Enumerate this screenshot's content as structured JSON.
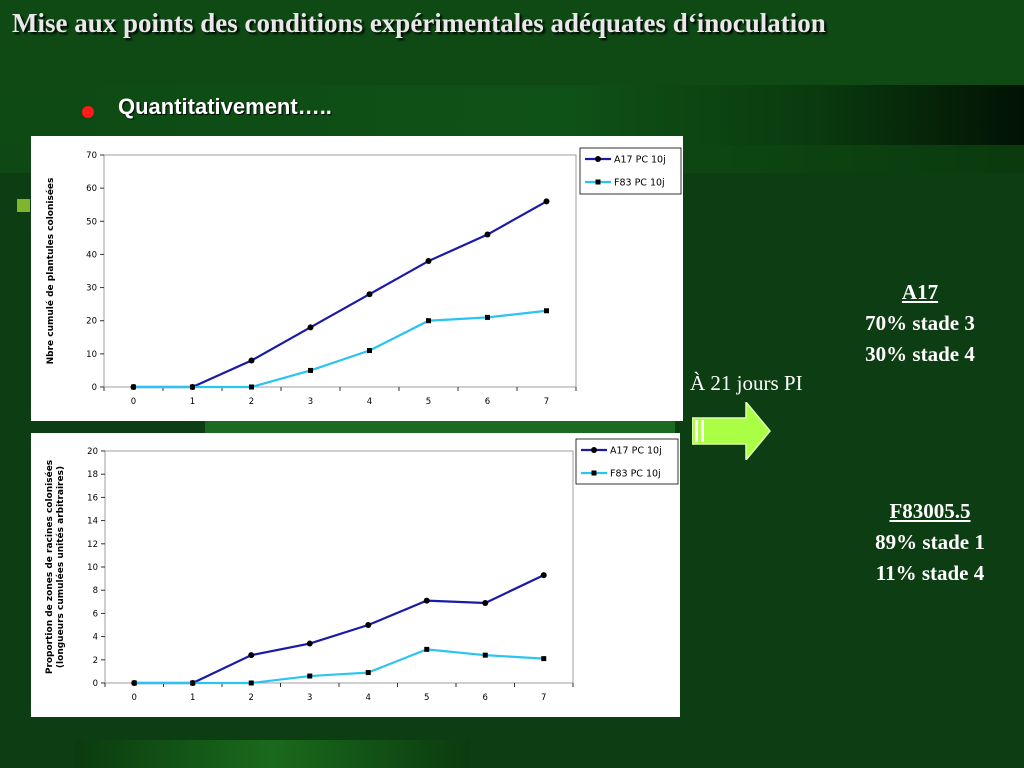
{
  "slide": {
    "title": "Mise aux points des conditions expérimentales adéquates d‘inoculation",
    "bullet": "Quantitativement…..",
    "caption": "À 21 jours PI",
    "a17": {
      "head": "A17",
      "lines": [
        "70% stade 3",
        "30% stade 4"
      ]
    },
    "f83": {
      "head": "F83005.5",
      "lines": [
        "89% stade 1",
        "11% stade 4"
      ]
    }
  },
  "colors": {
    "a17": "#1a1aa6",
    "f83": "#29c4f2",
    "bullet": "#ff1a1a"
  },
  "chart_data": [
    {
      "type": "line",
      "ylabel": "Nbre cumulé de plantules colonisées",
      "xlabel": "",
      "x": [
        0,
        1,
        2,
        3,
        4,
        5,
        6,
        7
      ],
      "ylim": [
        0,
        70
      ],
      "yticks": [
        0,
        10,
        20,
        30,
        40,
        50,
        60,
        70
      ],
      "legend": "top-right",
      "series": [
        {
          "name": "A17 PC 10j",
          "color": "#1a1aa6",
          "marker": "circle",
          "values": [
            0,
            0,
            8,
            18,
            28,
            38,
            46,
            56
          ]
        },
        {
          "name": "F83 PC 10j",
          "color": "#29c4f2",
          "marker": "square",
          "values": [
            0,
            0,
            0,
            5,
            11,
            20,
            21,
            23
          ]
        }
      ]
    },
    {
      "type": "line",
      "ylabel": "Proportion de zones de racines colonisées (longueurs cumulées unités arbitraires)",
      "ylabel_lines": [
        "Proportion de zones de racines colonisées",
        "(longueurs cumulées unités arbitraires)"
      ],
      "xlabel": "",
      "x": [
        0,
        1,
        2,
        3,
        4,
        5,
        6,
        7
      ],
      "ylim": [
        0,
        20
      ],
      "yticks": [
        0,
        2,
        4,
        6,
        8,
        10,
        12,
        14,
        16,
        18,
        20
      ],
      "legend": "top-right",
      "series": [
        {
          "name": "A17 PC 10j",
          "color": "#1a1aa6",
          "marker": "circle",
          "values": [
            0,
            0,
            2.4,
            3.4,
            5.0,
            7.1,
            6.9,
            9.3
          ]
        },
        {
          "name": "F83 PC 10j",
          "color": "#29c4f2",
          "marker": "square",
          "values": [
            0,
            0,
            0,
            0.6,
            0.9,
            2.9,
            2.4,
            2.1
          ]
        }
      ]
    }
  ]
}
